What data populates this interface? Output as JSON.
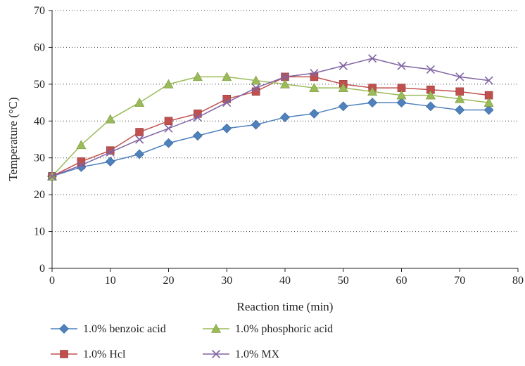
{
  "chart_data": {
    "type": "line",
    "title": "",
    "xlabel": "Reaction time (min)",
    "ylabel": "Temperature (°C)",
    "xlim": [
      0,
      80
    ],
    "ylim": [
      0,
      70
    ],
    "xticks": [
      0,
      10,
      20,
      30,
      40,
      50,
      60,
      70,
      80
    ],
    "yticks": [
      0,
      10,
      20,
      30,
      40,
      50,
      60,
      70
    ],
    "grid": "horizontal dotted",
    "legend_position": "bottom",
    "x": [
      0,
      5,
      10,
      15,
      20,
      25,
      30,
      35,
      40,
      45,
      50,
      55,
      60,
      65,
      70,
      75
    ],
    "series": [
      {
        "name": "1.0% benzoic acid",
        "color": "#4f81bd",
        "marker": "diamond",
        "values": [
          25,
          27.5,
          29,
          31,
          34,
          36,
          38,
          39,
          41,
          42,
          44,
          45,
          45,
          44,
          43,
          43
        ]
      },
      {
        "name": "1.0% Hcl",
        "color": "#c0504d",
        "marker": "square",
        "values": [
          25,
          29,
          32,
          37,
          40,
          42,
          46,
          48,
          52,
          52,
          50,
          49,
          49,
          48.5,
          48,
          47
        ]
      },
      {
        "name": "1.0% phosphoric acid",
        "color": "#9bbb59",
        "marker": "triangle",
        "values": [
          25,
          33.5,
          40.5,
          45,
          50,
          52,
          52,
          51,
          50,
          49,
          49,
          48,
          47,
          47,
          46,
          45
        ]
      },
      {
        "name": "1.0% MX",
        "color": "#8064a2",
        "marker": "x",
        "values": [
          25,
          28,
          31.5,
          35,
          38,
          41,
          45,
          49,
          52,
          53,
          55,
          57,
          55,
          54,
          52,
          51
        ]
      }
    ]
  }
}
